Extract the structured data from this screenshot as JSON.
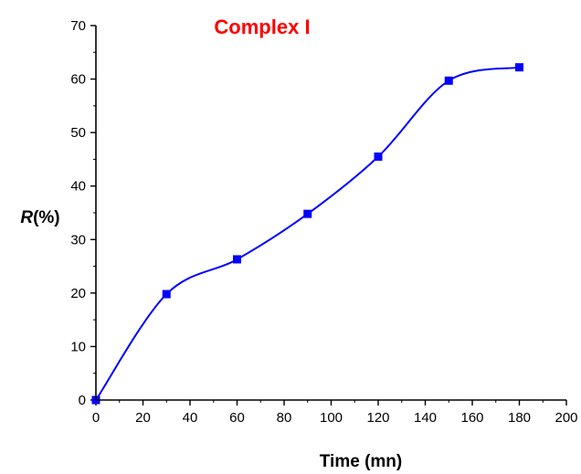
{
  "chart_data": {
    "type": "line",
    "title": "Complex I",
    "title_color": "#ff0000",
    "xlabel": "Time (mn)",
    "ylabel_italic": "R",
    "ylabel_rest": "(%)",
    "xlim": [
      0,
      200
    ],
    "ylim": [
      0,
      70
    ],
    "xticks": [
      0,
      20,
      40,
      60,
      80,
      100,
      120,
      140,
      160,
      180,
      200
    ],
    "yticks": [
      0,
      10,
      20,
      30,
      40,
      50,
      60,
      70
    ],
    "x_minor_step": 10,
    "y_minor_step": 5,
    "grid": false,
    "smooth": true,
    "series_color": "#0000ff",
    "x": [
      0,
      30,
      60,
      90,
      120,
      150,
      180
    ],
    "y": [
      0,
      19.8,
      26.3,
      34.8,
      45.5,
      59.7,
      62.2
    ]
  }
}
